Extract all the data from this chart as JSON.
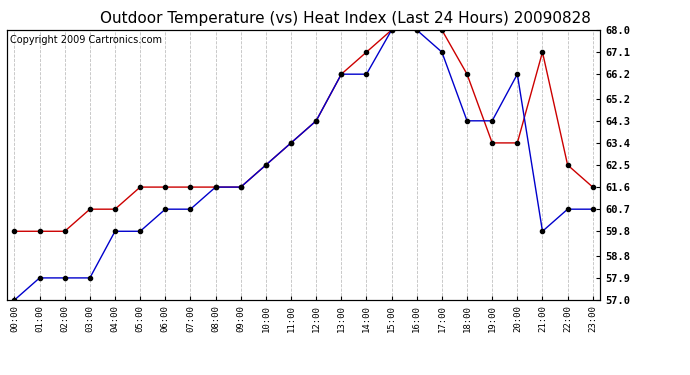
{
  "title": "Outdoor Temperature (vs) Heat Index (Last 24 Hours) 20090828",
  "copyright": "Copyright 2009 Cartronics.com",
  "x_labels": [
    "00:00",
    "01:00",
    "02:00",
    "03:00",
    "04:00",
    "05:00",
    "06:00",
    "07:00",
    "08:00",
    "09:00",
    "10:00",
    "11:00",
    "12:00",
    "13:00",
    "14:00",
    "15:00",
    "16:00",
    "17:00",
    "18:00",
    "19:00",
    "20:00",
    "21:00",
    "22:00",
    "23:00"
  ],
  "red_data": [
    59.8,
    59.8,
    59.8,
    60.7,
    60.7,
    61.6,
    61.6,
    61.6,
    61.6,
    61.6,
    62.5,
    63.4,
    64.3,
    66.2,
    67.1,
    68.0,
    68.0,
    68.0,
    66.2,
    63.4,
    63.4,
    67.1,
    62.5,
    61.6
  ],
  "blue_data": [
    57.0,
    57.9,
    57.9,
    57.9,
    59.8,
    59.8,
    60.7,
    60.7,
    61.6,
    61.6,
    62.5,
    63.4,
    64.3,
    66.2,
    66.2,
    68.0,
    68.0,
    67.1,
    64.3,
    64.3,
    66.2,
    59.8,
    60.7,
    60.7
  ],
  "ylim": [
    57.0,
    68.0
  ],
  "yticks": [
    57.0,
    57.9,
    58.8,
    59.8,
    60.7,
    61.6,
    62.5,
    63.4,
    64.3,
    65.2,
    66.2,
    67.1,
    68.0
  ],
  "red_color": "#cc0000",
  "blue_color": "#0000cc",
  "bg_color": "#ffffff",
  "plot_bg_color": "#ffffff",
  "grid_color": "#b0b0b0",
  "title_fontsize": 11,
  "copyright_fontsize": 7
}
